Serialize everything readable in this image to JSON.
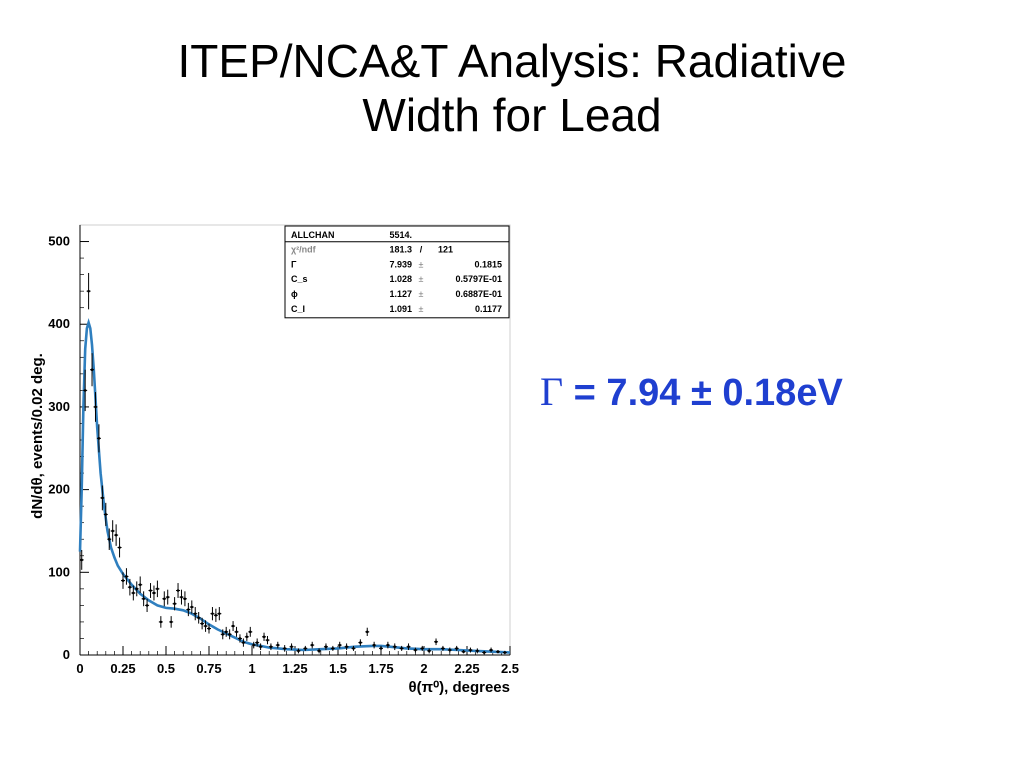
{
  "slide": {
    "title_line1": "ITEP/NCA&T Analysis: Radiative",
    "title_line2": "Width for Lead",
    "result_symbol": "Γ",
    "result_text": " = 7.94 ± 0.18eV",
    "accent_color": "#1f3fd0"
  },
  "chart_data": {
    "type": "scatter",
    "xlabel": "θ(π⁰), degrees",
    "ylabel": "dN/dθ, events/0.02 deg.",
    "xlim": [
      0,
      2.5
    ],
    "ylim": [
      0,
      520
    ],
    "xticks": [
      0,
      0.25,
      0.5,
      0.75,
      1,
      1.25,
      1.5,
      1.75,
      2,
      2.25,
      2.5
    ],
    "xtick_labels": [
      "0",
      "0.25",
      "0.5",
      "0.75",
      "1",
      "1.25",
      "1.5",
      "1.75",
      "2",
      "2.25",
      "2.5"
    ],
    "yticks": [
      0,
      100,
      200,
      300,
      400,
      500
    ],
    "ytick_labels": [
      "0",
      "100",
      "200",
      "300",
      "400",
      "500"
    ],
    "grid": false,
    "series": [
      {
        "kind": "points_with_errors",
        "color": "#000000",
        "points": [
          [
            0.01,
            115,
            12
          ],
          [
            0.03,
            320,
            25
          ],
          [
            0.05,
            440,
            22
          ],
          [
            0.07,
            345,
            20
          ],
          [
            0.09,
            300,
            18
          ],
          [
            0.11,
            262,
            17
          ],
          [
            0.13,
            190,
            15
          ],
          [
            0.15,
            170,
            14
          ],
          [
            0.17,
            140,
            13
          ],
          [
            0.19,
            150,
            13
          ],
          [
            0.21,
            145,
            13
          ],
          [
            0.23,
            130,
            12
          ],
          [
            0.25,
            90,
            10
          ],
          [
            0.27,
            95,
            10
          ],
          [
            0.29,
            82,
            10
          ],
          [
            0.31,
            75,
            9
          ],
          [
            0.33,
            80,
            9
          ],
          [
            0.35,
            85,
            10
          ],
          [
            0.37,
            68,
            9
          ],
          [
            0.39,
            60,
            8
          ],
          [
            0.41,
            78,
            9
          ],
          [
            0.43,
            75,
            9
          ],
          [
            0.45,
            80,
            10
          ],
          [
            0.47,
            40,
            7
          ],
          [
            0.49,
            68,
            9
          ],
          [
            0.51,
            70,
            9
          ],
          [
            0.53,
            40,
            7
          ],
          [
            0.55,
            62,
            8
          ],
          [
            0.57,
            78,
            9
          ],
          [
            0.59,
            70,
            9
          ],
          [
            0.61,
            68,
            9
          ],
          [
            0.63,
            55,
            8
          ],
          [
            0.65,
            58,
            8
          ],
          [
            0.67,
            50,
            8
          ],
          [
            0.69,
            45,
            7
          ],
          [
            0.71,
            38,
            7
          ],
          [
            0.73,
            35,
            7
          ],
          [
            0.75,
            32,
            6
          ],
          [
            0.77,
            50,
            8
          ],
          [
            0.79,
            48,
            8
          ],
          [
            0.81,
            50,
            8
          ],
          [
            0.83,
            25,
            6
          ],
          [
            0.85,
            28,
            6
          ],
          [
            0.87,
            25,
            6
          ],
          [
            0.89,
            35,
            6
          ],
          [
            0.91,
            28,
            6
          ],
          [
            0.93,
            20,
            5
          ],
          [
            0.95,
            15,
            5
          ],
          [
            0.97,
            22,
            5
          ],
          [
            0.99,
            28,
            6
          ],
          [
            1.01,
            12,
            4
          ],
          [
            1.03,
            15,
            5
          ],
          [
            1.05,
            10,
            4
          ],
          [
            1.07,
            22,
            5
          ],
          [
            1.09,
            18,
            5
          ],
          [
            1.11,
            10,
            4
          ],
          [
            1.15,
            12,
            4
          ],
          [
            1.19,
            8,
            4
          ],
          [
            1.23,
            10,
            4
          ],
          [
            1.27,
            5,
            3
          ],
          [
            1.31,
            8,
            3
          ],
          [
            1.35,
            12,
            4
          ],
          [
            1.39,
            5,
            3
          ],
          [
            1.43,
            10,
            4
          ],
          [
            1.47,
            8,
            3
          ],
          [
            1.51,
            12,
            4
          ],
          [
            1.55,
            10,
            4
          ],
          [
            1.59,
            8,
            3
          ],
          [
            1.63,
            15,
            4
          ],
          [
            1.67,
            28,
            5
          ],
          [
            1.71,
            12,
            4
          ],
          [
            1.75,
            8,
            3
          ],
          [
            1.79,
            12,
            4
          ],
          [
            1.83,
            10,
            4
          ],
          [
            1.87,
            8,
            3
          ],
          [
            1.91,
            10,
            4
          ],
          [
            1.95,
            6,
            3
          ],
          [
            1.99,
            8,
            3
          ],
          [
            2.03,
            5,
            3
          ],
          [
            2.07,
            16,
            4
          ],
          [
            2.11,
            8,
            3
          ],
          [
            2.15,
            6,
            3
          ],
          [
            2.19,
            8,
            3
          ],
          [
            2.23,
            4,
            2
          ],
          [
            2.27,
            6,
            3
          ],
          [
            2.31,
            5,
            3
          ],
          [
            2.35,
            3,
            2
          ],
          [
            2.39,
            6,
            3
          ],
          [
            2.43,
            4,
            2
          ],
          [
            2.47,
            3,
            2
          ]
        ]
      },
      {
        "kind": "fit_curve",
        "color": "#2f7fbf",
        "points": [
          [
            0.0,
            125
          ],
          [
            0.01,
            200
          ],
          [
            0.02,
            300
          ],
          [
            0.03,
            370
          ],
          [
            0.04,
            395
          ],
          [
            0.05,
            402
          ],
          [
            0.06,
            395
          ],
          [
            0.07,
            375
          ],
          [
            0.08,
            345
          ],
          [
            0.09,
            310
          ],
          [
            0.1,
            275
          ],
          [
            0.12,
            220
          ],
          [
            0.14,
            180
          ],
          [
            0.16,
            150
          ],
          [
            0.18,
            130
          ],
          [
            0.2,
            118
          ],
          [
            0.22,
            108
          ],
          [
            0.25,
            98
          ],
          [
            0.3,
            85
          ],
          [
            0.35,
            74
          ],
          [
            0.4,
            66
          ],
          [
            0.45,
            60
          ],
          [
            0.5,
            57
          ],
          [
            0.55,
            56
          ],
          [
            0.6,
            54
          ],
          [
            0.65,
            50
          ],
          [
            0.7,
            44
          ],
          [
            0.75,
            37
          ],
          [
            0.8,
            31
          ],
          [
            0.85,
            26
          ],
          [
            0.9,
            21
          ],
          [
            0.95,
            16
          ],
          [
            1.0,
            13
          ],
          [
            1.05,
            11
          ],
          [
            1.1,
            9
          ],
          [
            1.2,
            7
          ],
          [
            1.3,
            6
          ],
          [
            1.4,
            7
          ],
          [
            1.5,
            8
          ],
          [
            1.6,
            10
          ],
          [
            1.7,
            11
          ],
          [
            1.75,
            11
          ],
          [
            1.8,
            10
          ],
          [
            1.9,
            8
          ],
          [
            2.0,
            7
          ],
          [
            2.1,
            7
          ],
          [
            2.2,
            6
          ],
          [
            2.3,
            5
          ],
          [
            2.4,
            4
          ],
          [
            2.5,
            3
          ]
        ]
      }
    ],
    "stats_box": {
      "rows": [
        {
          "name": "ALLCHAN",
          "value": "5514.",
          "pm": "",
          "error": ""
        },
        {
          "name": "χ²/ndf",
          "value": "181.3",
          "pm": "/",
          "error": "121"
        },
        {
          "name": "Γ",
          "value": "7.939",
          "pm": "±",
          "error": "0.1815"
        },
        {
          "name": "C_s",
          "value": "1.028",
          "pm": "±",
          "error": "0.5797E-01"
        },
        {
          "name": "ϕ",
          "value": "1.127",
          "pm": "±",
          "error": "0.6887E-01"
        },
        {
          "name": "C_I",
          "value": "1.091",
          "pm": "±",
          "error": "0.1177"
        }
      ]
    }
  }
}
